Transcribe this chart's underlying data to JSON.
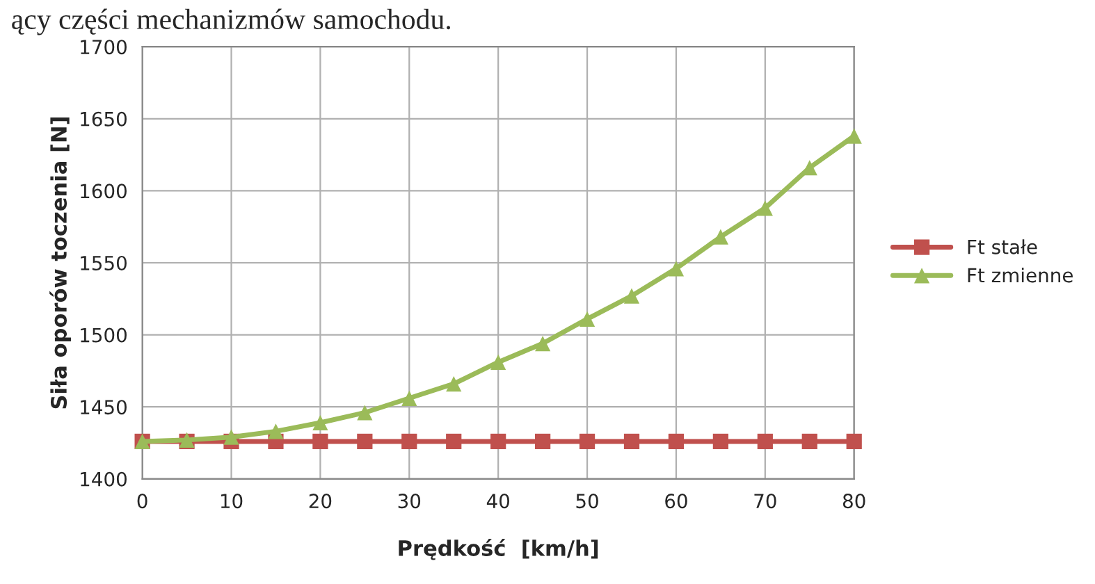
{
  "chart_data": {
    "type": "line",
    "xlabel": "Prędkość  [km/h]",
    "ylabel": "Siła oporów toczenia [N]",
    "annotations": [
      "ący części mechanizmów samochodu."
    ],
    "x": [
      0,
      5,
      10,
      15,
      20,
      25,
      30,
      35,
      40,
      45,
      50,
      55,
      60,
      65,
      70,
      75,
      80
    ],
    "series": [
      {
        "name": "Ft stałe",
        "color": "#c0504d",
        "marker": "square",
        "values": [
          1426,
          1426,
          1426,
          1426,
          1426,
          1426,
          1426,
          1426,
          1426,
          1426,
          1426,
          1426,
          1426,
          1426,
          1426,
          1426,
          1426
        ]
      },
      {
        "name": "Ft zmienne",
        "color": "#9bbb59",
        "marker": "triangle",
        "values": [
          1426,
          1427,
          1429,
          1433,
          1439,
          1446,
          1456,
          1466,
          1481,
          1494,
          1511,
          1527,
          1546,
          1568,
          1588,
          1616,
          1638
        ]
      }
    ],
    "xlim": [
      0,
      80
    ],
    "xticks": [
      0,
      10,
      20,
      30,
      40,
      50,
      60,
      70,
      80
    ],
    "ylim": [
      1400,
      1700
    ],
    "yticks": [
      1400,
      1450,
      1500,
      1550,
      1600,
      1650,
      1700
    ],
    "grid": true,
    "legend": "right",
    "line_style": "solid"
  }
}
